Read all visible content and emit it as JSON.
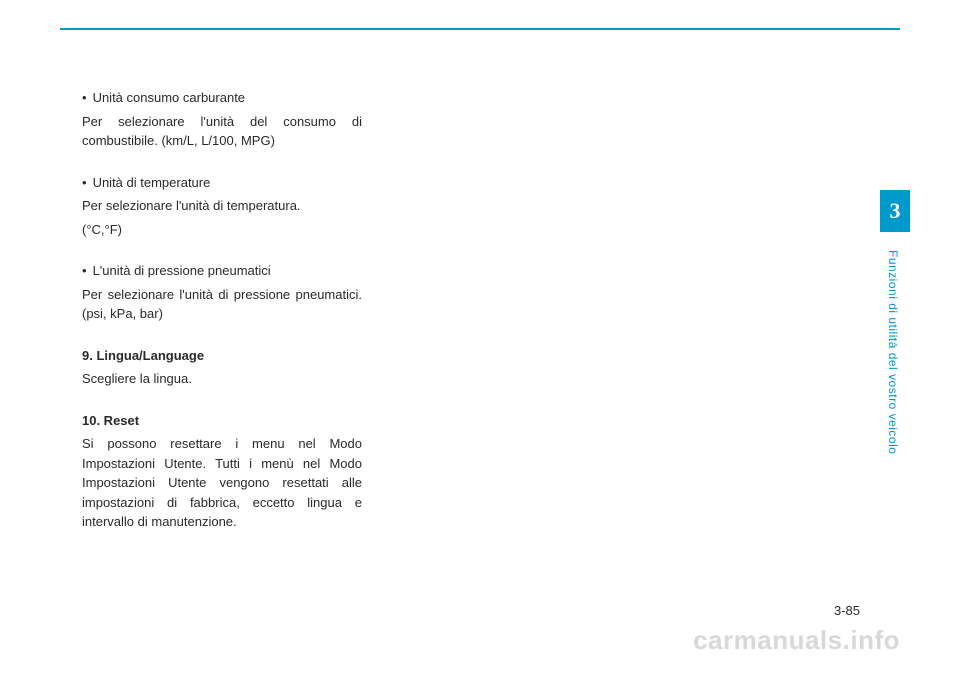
{
  "topRule": {
    "color": "#0099cc"
  },
  "sideTab": {
    "label": "3",
    "bgColor": "#0099cc",
    "textColor": "#ffffff"
  },
  "sideLabel": {
    "text": "Funzioni di utilità del vostro veicolo",
    "color": "#0099cc"
  },
  "pageNumber": "3-85",
  "watermark": "carmanuals.info",
  "body": {
    "section1": {
      "bullet": "Unità consumo carburante",
      "text": "Per selezionare l'unità del consumo di combustibile. (km/L, L/100, MPG)"
    },
    "section2": {
      "bullet": "Unità di temperature",
      "text1": "Per selezionare l'unità di temperatura.",
      "text2": "(°C,°F)"
    },
    "section3": {
      "bullet": "L'unità di pressione pneumatici",
      "text": "Per selezionare l'unità di pressione pneumatici. (psi, kPa, bar)"
    },
    "section4": {
      "heading": "9. Lingua/Language",
      "text": "Scegliere la lingua."
    },
    "section5": {
      "heading": "10. Reset",
      "text": "Si possono resettare i menu nel Modo Impostazioni Utente. Tutti i menù nel Modo Impostazioni Utente vengono resettati alle impostazioni di fabbrica, eccetto lingua e intervallo di manutenzione."
    }
  }
}
